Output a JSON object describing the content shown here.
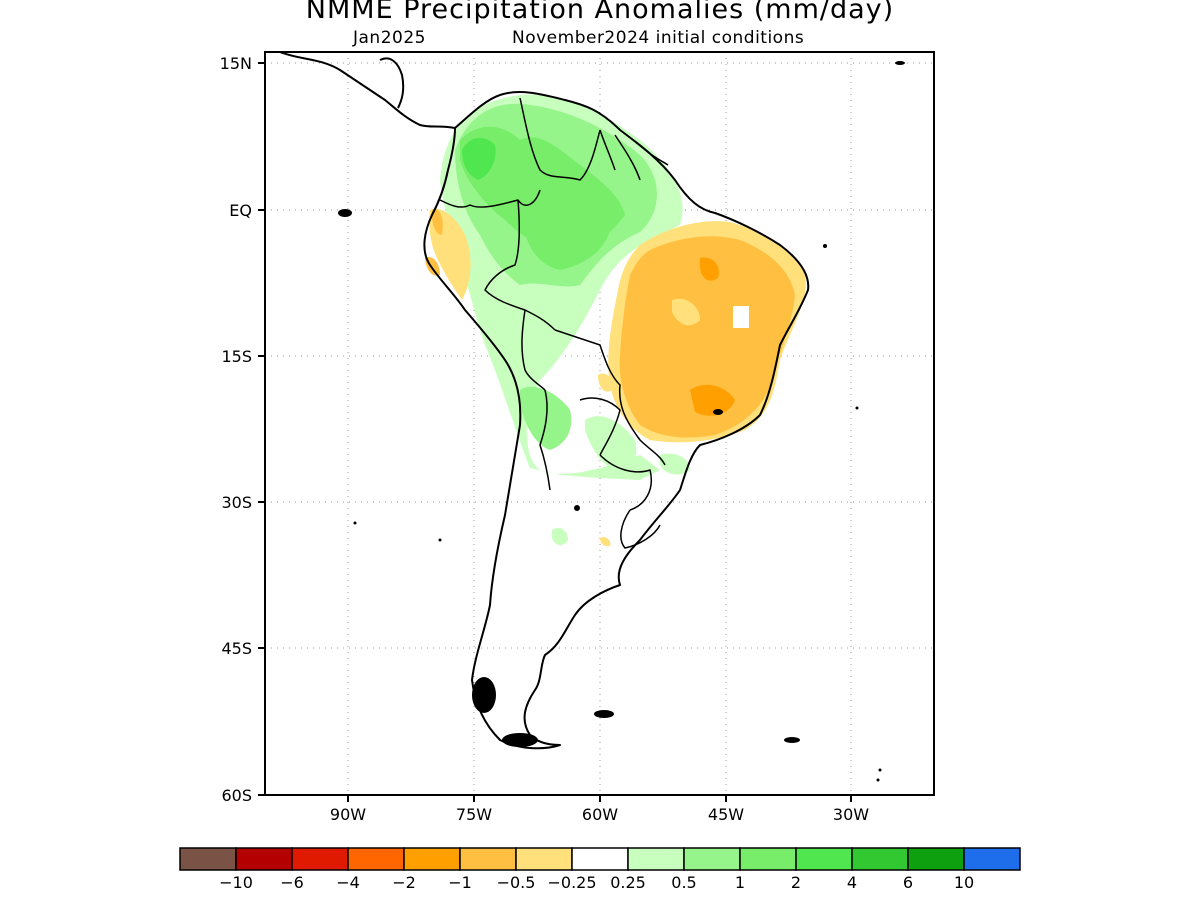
{
  "title": "NMME Precipitation Anomalies (mm/day)",
  "subtitle_left": "Jan2025",
  "subtitle_right": "November2024 initial conditions",
  "y_axis_labels": [
    "15N",
    "EQ",
    "15S",
    "30S",
    "45S",
    "60S"
  ],
  "x_axis_labels": [
    "90W",
    "75W",
    "60W",
    "45W",
    "30W"
  ],
  "colorbar": {
    "colors": [
      "#7a5246",
      "#b40000",
      "#e01a00",
      "#ff6600",
      "#ffa000",
      "#ffc042",
      "#ffe07a",
      "#ffffff",
      "#c8ffbe",
      "#96f58a",
      "#78ed6a",
      "#50e650",
      "#32c832",
      "#0fa00f",
      "#1e6eeb"
    ],
    "labels": [
      "-10",
      "-6",
      "-4",
      "-2",
      "-1",
      "-0.5",
      "-0.25",
      "0.25",
      "0.5",
      "1",
      "2",
      "4",
      "6",
      "10"
    ]
  },
  "map_data": {
    "region": "South America",
    "lat_range": [
      "15N",
      "60S"
    ],
    "lon_range": [
      "100W",
      "20W"
    ],
    "anomaly_regions": [
      {
        "area": "northern South America / Amazon",
        "category": "0.5 to 2",
        "color": "#78ed6a"
      },
      {
        "area": "eastern Brazil",
        "category": "-1 to -0.5",
        "color": "#ffc042"
      },
      {
        "area": "Ecuador / northern Peru coast",
        "category": "-0.5 to -0.25",
        "color": "#ffe07a"
      },
      {
        "area": "Bolivia / Paraguay",
        "category": "0.25 to 1",
        "color": "#96f58a"
      }
    ]
  }
}
